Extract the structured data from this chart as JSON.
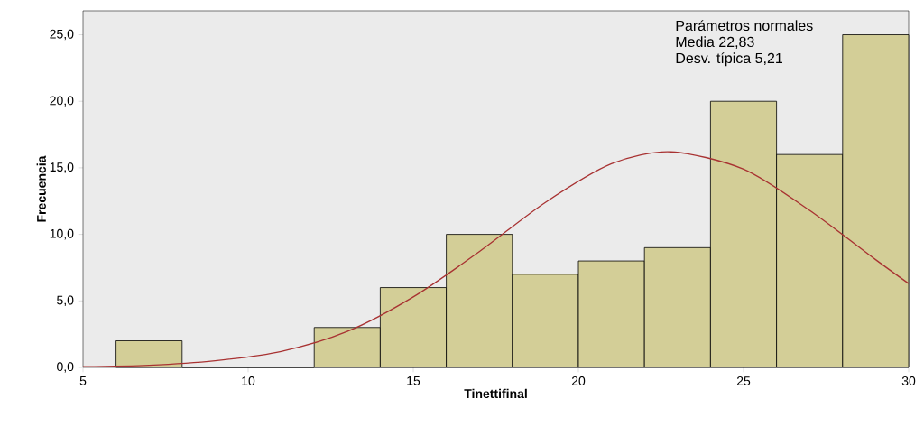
{
  "chart_data": {
    "type": "histogram",
    "xlabel": "Tinettifinal",
    "ylabel": "Frecuencia",
    "annotations": [
      "Parámetros normales",
      "Media 22,83",
      "Desv. típica 5,21"
    ],
    "xlim": [
      5,
      30
    ],
    "ylim": [
      0,
      26.8
    ],
    "xticks": [
      5,
      10,
      15,
      20,
      25,
      30
    ],
    "yticks": [
      {
        "value": 0,
        "label": "0,0"
      },
      {
        "value": 5,
        "label": "5,0"
      },
      {
        "value": 10,
        "label": "10,0"
      },
      {
        "value": 15,
        "label": "15,0"
      },
      {
        "value": 20,
        "label": "20,0"
      },
      {
        "value": 25,
        "label": "25,0"
      }
    ],
    "series": [
      {
        "color": "#d3ce97",
        "bins": [
          6,
          8,
          10,
          12,
          14,
          16,
          18,
          20,
          22,
          24,
          26,
          28,
          30
        ],
        "values": [
          2,
          0,
          0,
          3,
          6,
          10,
          7,
          8,
          9,
          20,
          16,
          25
        ]
      },
      {
        "type": "line",
        "color": "#a83232",
        "x": [
          5,
          7,
          9,
          11,
          13,
          15,
          17,
          19,
          21,
          22.8,
          25,
          27,
          29,
          30
        ],
        "values": [
          0.05,
          0.16,
          0.5,
          1.2,
          2.7,
          5.3,
          8.7,
          12.4,
          15.3,
          16.2,
          14.9,
          11.8,
          8.1,
          6.3
        ]
      }
    ]
  }
}
